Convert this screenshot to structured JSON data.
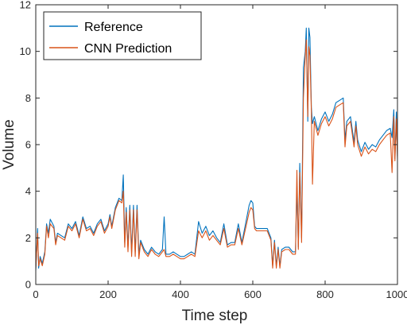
{
  "chart_data": {
    "type": "line",
    "xlabel": "Time step",
    "ylabel": "Volume",
    "xlim": [
      0,
      1000
    ],
    "ylim": [
      0,
      12
    ],
    "xticks": [
      0,
      200,
      400,
      600,
      800,
      1000
    ],
    "yticks": [
      0,
      2,
      4,
      6,
      8,
      10,
      12
    ],
    "grid": false,
    "legend_position": "top-left",
    "series": [
      {
        "name": "Reference",
        "color": "#0072BD",
        "points": [
          [
            0,
            0.6
          ],
          [
            5,
            2.4
          ],
          [
            8,
            0.7
          ],
          [
            12,
            1.2
          ],
          [
            18,
            0.9
          ],
          [
            25,
            1.4
          ],
          [
            30,
            2.6
          ],
          [
            35,
            2.2
          ],
          [
            40,
            2.8
          ],
          [
            50,
            2.5
          ],
          [
            55,
            1.8
          ],
          [
            60,
            2.2
          ],
          [
            70,
            2.1
          ],
          [
            80,
            2.0
          ],
          [
            90,
            2.6
          ],
          [
            100,
            2.4
          ],
          [
            110,
            2.7
          ],
          [
            120,
            2.1
          ],
          [
            130,
            2.9
          ],
          [
            140,
            2.4
          ],
          [
            150,
            2.5
          ],
          [
            160,
            2.2
          ],
          [
            170,
            2.6
          ],
          [
            180,
            2.8
          ],
          [
            190,
            2.3
          ],
          [
            200,
            2.6
          ],
          [
            205,
            3.0
          ],
          [
            210,
            2.5
          ],
          [
            220,
            3.3
          ],
          [
            230,
            3.7
          ],
          [
            238,
            3.6
          ],
          [
            242,
            4.7
          ],
          [
            246,
            1.8
          ],
          [
            250,
            3.3
          ],
          [
            255,
            1.6
          ],
          [
            260,
            3.4
          ],
          [
            265,
            1.4
          ],
          [
            270,
            3.4
          ],
          [
            275,
            1.4
          ],
          [
            280,
            3.4
          ],
          [
            285,
            1.3
          ],
          [
            290,
            1.9
          ],
          [
            300,
            1.5
          ],
          [
            310,
            1.3
          ],
          [
            320,
            1.6
          ],
          [
            330,
            1.4
          ],
          [
            340,
            1.3
          ],
          [
            350,
            1.5
          ],
          [
            355,
            2.9
          ],
          [
            360,
            1.3
          ],
          [
            370,
            1.3
          ],
          [
            380,
            1.4
          ],
          [
            390,
            1.3
          ],
          [
            400,
            1.2
          ],
          [
            410,
            1.2
          ],
          [
            420,
            1.3
          ],
          [
            430,
            1.4
          ],
          [
            440,
            1.3
          ],
          [
            450,
            2.7
          ],
          [
            460,
            2.2
          ],
          [
            470,
            2.5
          ],
          [
            480,
            2.1
          ],
          [
            490,
            2.3
          ],
          [
            500,
            2.0
          ],
          [
            510,
            1.8
          ],
          [
            520,
            2.6
          ],
          [
            530,
            1.7
          ],
          [
            540,
            1.8
          ],
          [
            550,
            1.8
          ],
          [
            560,
            2.6
          ],
          [
            570,
            1.8
          ],
          [
            580,
            2.6
          ],
          [
            590,
            3.4
          ],
          [
            595,
            3.6
          ],
          [
            600,
            3.5
          ],
          [
            605,
            2.5
          ],
          [
            610,
            2.4
          ],
          [
            620,
            2.4
          ],
          [
            630,
            2.4
          ],
          [
            640,
            2.4
          ],
          [
            650,
            2.0
          ],
          [
            655,
            0.8
          ],
          [
            660,
            1.9
          ],
          [
            665,
            0.8
          ],
          [
            670,
            1.6
          ],
          [
            675,
            0.8
          ],
          [
            680,
            1.5
          ],
          [
            690,
            1.6
          ],
          [
            700,
            1.6
          ],
          [
            710,
            1.4
          ],
          [
            718,
            1.4
          ],
          [
            722,
            4.2
          ],
          [
            726,
            1.6
          ],
          [
            730,
            5.2
          ],
          [
            735,
            2.0
          ],
          [
            740,
            9.3
          ],
          [
            745,
            10.0
          ],
          [
            748,
            11.0
          ],
          [
            752,
            7.0
          ],
          [
            755,
            11.0
          ],
          [
            758,
            10.6
          ],
          [
            762,
            7.6
          ],
          [
            765,
            6.9
          ],
          [
            770,
            7.2
          ],
          [
            780,
            6.6
          ],
          [
            790,
            7.1
          ],
          [
            800,
            7.4
          ],
          [
            810,
            7.0
          ],
          [
            820,
            7.3
          ],
          [
            830,
            7.8
          ],
          [
            840,
            7.9
          ],
          [
            850,
            8.0
          ],
          [
            855,
            6.2
          ],
          [
            860,
            7.0
          ],
          [
            870,
            7.2
          ],
          [
            880,
            6.1
          ],
          [
            885,
            7.0
          ],
          [
            890,
            6.2
          ],
          [
            900,
            5.7
          ],
          [
            910,
            6.1
          ],
          [
            920,
            5.8
          ],
          [
            930,
            6.0
          ],
          [
            940,
            5.9
          ],
          [
            950,
            6.2
          ],
          [
            960,
            6.4
          ],
          [
            970,
            6.6
          ],
          [
            980,
            6.7
          ],
          [
            985,
            6.3
          ],
          [
            990,
            7.5
          ],
          [
            993,
            5.4
          ],
          [
            997,
            7.4
          ],
          [
            1000,
            5.5
          ]
        ]
      },
      {
        "name": "CNN Prediction",
        "color": "#D95319",
        "points": [
          [
            0,
            0.7
          ],
          [
            5,
            2.2
          ],
          [
            8,
            0.8
          ],
          [
            12,
            1.1
          ],
          [
            18,
            0.8
          ],
          [
            25,
            1.3
          ],
          [
            30,
            2.5
          ],
          [
            35,
            2.0
          ],
          [
            40,
            2.6
          ],
          [
            50,
            2.4
          ],
          [
            55,
            1.7
          ],
          [
            60,
            2.1
          ],
          [
            70,
            2.0
          ],
          [
            80,
            1.9
          ],
          [
            90,
            2.5
          ],
          [
            100,
            2.3
          ],
          [
            110,
            2.6
          ],
          [
            120,
            2.0
          ],
          [
            130,
            2.8
          ],
          [
            140,
            2.3
          ],
          [
            150,
            2.4
          ],
          [
            160,
            2.1
          ],
          [
            170,
            2.5
          ],
          [
            180,
            2.7
          ],
          [
            190,
            2.2
          ],
          [
            200,
            2.5
          ],
          [
            205,
            2.9
          ],
          [
            210,
            2.4
          ],
          [
            220,
            3.2
          ],
          [
            230,
            3.6
          ],
          [
            238,
            3.5
          ],
          [
            242,
            4.0
          ],
          [
            246,
            1.6
          ],
          [
            250,
            3.1
          ],
          [
            255,
            1.4
          ],
          [
            260,
            3.2
          ],
          [
            265,
            1.2
          ],
          [
            270,
            3.2
          ],
          [
            275,
            1.2
          ],
          [
            280,
            3.2
          ],
          [
            285,
            1.1
          ],
          [
            290,
            1.8
          ],
          [
            300,
            1.4
          ],
          [
            310,
            1.2
          ],
          [
            320,
            1.5
          ],
          [
            330,
            1.3
          ],
          [
            340,
            1.2
          ],
          [
            350,
            1.4
          ],
          [
            355,
            1.5
          ],
          [
            360,
            1.2
          ],
          [
            370,
            1.2
          ],
          [
            380,
            1.3
          ],
          [
            390,
            1.2
          ],
          [
            400,
            1.1
          ],
          [
            410,
            1.1
          ],
          [
            420,
            1.2
          ],
          [
            430,
            1.3
          ],
          [
            440,
            1.2
          ],
          [
            450,
            2.3
          ],
          [
            460,
            2.0
          ],
          [
            470,
            2.3
          ],
          [
            480,
            1.9
          ],
          [
            490,
            2.1
          ],
          [
            500,
            1.9
          ],
          [
            510,
            1.7
          ],
          [
            520,
            2.4
          ],
          [
            530,
            1.6
          ],
          [
            540,
            1.7
          ],
          [
            550,
            1.7
          ],
          [
            560,
            2.4
          ],
          [
            570,
            1.7
          ],
          [
            580,
            2.4
          ],
          [
            590,
            3.1
          ],
          [
            595,
            3.3
          ],
          [
            600,
            3.2
          ],
          [
            605,
            2.4
          ],
          [
            610,
            2.3
          ],
          [
            620,
            2.3
          ],
          [
            630,
            2.3
          ],
          [
            640,
            2.3
          ],
          [
            650,
            1.9
          ],
          [
            655,
            0.7
          ],
          [
            660,
            1.8
          ],
          [
            665,
            0.7
          ],
          [
            670,
            1.5
          ],
          [
            675,
            0.7
          ],
          [
            680,
            1.4
          ],
          [
            690,
            1.5
          ],
          [
            700,
            1.5
          ],
          [
            710,
            1.3
          ],
          [
            718,
            1.3
          ],
          [
            722,
            4.9
          ],
          [
            726,
            1.5
          ],
          [
            730,
            4.8
          ],
          [
            735,
            1.8
          ],
          [
            740,
            8.0
          ],
          [
            745,
            9.8
          ],
          [
            748,
            10.5
          ],
          [
            752,
            7.2
          ],
          [
            755,
            10.2
          ],
          [
            758,
            9.8
          ],
          [
            762,
            7.4
          ],
          [
            765,
            4.3
          ],
          [
            770,
            7.0
          ],
          [
            780,
            6.4
          ],
          [
            790,
            6.9
          ],
          [
            800,
            7.2
          ],
          [
            810,
            6.8
          ],
          [
            820,
            7.1
          ],
          [
            830,
            7.6
          ],
          [
            840,
            7.7
          ],
          [
            850,
            7.8
          ],
          [
            855,
            5.9
          ],
          [
            860,
            6.8
          ],
          [
            870,
            7.0
          ],
          [
            880,
            5.9
          ],
          [
            885,
            6.8
          ],
          [
            890,
            6.0
          ],
          [
            900,
            5.5
          ],
          [
            910,
            5.9
          ],
          [
            920,
            5.6
          ],
          [
            930,
            5.8
          ],
          [
            940,
            5.7
          ],
          [
            950,
            6.0
          ],
          [
            960,
            6.2
          ],
          [
            970,
            6.4
          ],
          [
            980,
            6.5
          ],
          [
            985,
            4.8
          ],
          [
            990,
            7.2
          ],
          [
            993,
            5.3
          ],
          [
            997,
            7.1
          ],
          [
            1000,
            5.4
          ]
        ]
      }
    ]
  }
}
